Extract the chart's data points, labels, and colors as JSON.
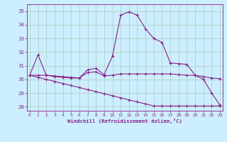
{
  "xlabel": "Windchill (Refroidissement éolien,°C)",
  "background_color": "#cceeff",
  "grid_color": "#aaccbb",
  "line_color": "#882288",
  "xlim": [
    -0.3,
    23.3
  ],
  "ylim": [
    27.7,
    35.5
  ],
  "yticks": [
    28,
    29,
    30,
    31,
    32,
    33,
    34,
    35
  ],
  "xticks": [
    0,
    1,
    2,
    3,
    4,
    5,
    6,
    7,
    8,
    9,
    10,
    11,
    12,
    13,
    14,
    15,
    16,
    17,
    18,
    19,
    20,
    21,
    22,
    23
  ],
  "line1_x": [
    0,
    1,
    2,
    3,
    4,
    5,
    6,
    7,
    8,
    9,
    10,
    11,
    12,
    13,
    14,
    15,
    16,
    17,
    18,
    19,
    20,
    21,
    22,
    23
  ],
  "line1_y": [
    30.3,
    31.8,
    30.3,
    30.2,
    30.15,
    30.1,
    30.1,
    30.7,
    30.8,
    30.35,
    31.7,
    34.7,
    34.95,
    34.7,
    33.7,
    33.0,
    32.7,
    31.2,
    31.15,
    31.1,
    30.3,
    30.0,
    29.0,
    28.1
  ],
  "line2_x": [
    0,
    1,
    2,
    3,
    4,
    5,
    6,
    7,
    8,
    9,
    10,
    11,
    12,
    13,
    14,
    15,
    16,
    17,
    18,
    19,
    20,
    21,
    22,
    23
  ],
  "line2_y": [
    30.3,
    30.3,
    30.3,
    30.25,
    30.2,
    30.15,
    30.1,
    30.5,
    30.55,
    30.25,
    30.3,
    30.4,
    30.4,
    30.4,
    30.4,
    30.4,
    30.4,
    30.4,
    30.35,
    30.3,
    30.3,
    30.2,
    30.1,
    30.05
  ],
  "line3_x": [
    0,
    1,
    2,
    3,
    4,
    5,
    6,
    7,
    8,
    9,
    10,
    11,
    12,
    13,
    14,
    15,
    16,
    17,
    18,
    19,
    20,
    21,
    22,
    23
  ],
  "line3_y": [
    30.3,
    30.15,
    30.0,
    29.85,
    29.7,
    29.55,
    29.4,
    29.25,
    29.1,
    28.95,
    28.8,
    28.65,
    28.5,
    28.35,
    28.2,
    28.05,
    28.05,
    28.05,
    28.05,
    28.05,
    28.05,
    28.05,
    28.05,
    28.05
  ]
}
